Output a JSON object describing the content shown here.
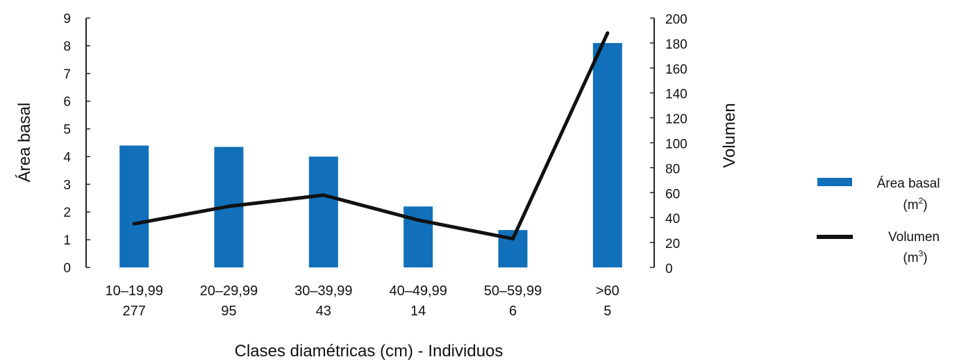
{
  "chart_data": {
    "type": "bar",
    "categories": [
      "10–19,99",
      "20–29,99",
      "30–39,99",
      "40–49,99",
      "50–59,99",
      ">60"
    ],
    "individuals": [
      "277",
      "95",
      "43",
      "14",
      "6",
      "5"
    ],
    "xlabel": "Clases diamétricas (cm) - Individuos",
    "ylabel": "Área basal",
    "y2label": "Volumen",
    "y_ticks": [
      "0",
      "1",
      "2",
      "3",
      "4",
      "5",
      "6",
      "7",
      "8",
      "9"
    ],
    "y2_ticks": [
      "0",
      "20",
      "40",
      "60",
      "80",
      "100",
      "120",
      "140",
      "160",
      "180",
      "200"
    ],
    "ylim": [
      0,
      9
    ],
    "y2lim": [
      0,
      200
    ],
    "series": [
      {
        "name": "Área basal",
        "unit": "m",
        "unit_sup": "2",
        "type": "bar",
        "axis": "left",
        "color": "#1170b9",
        "values": [
          4.4,
          4.35,
          4.0,
          2.2,
          1.35,
          8.1
        ]
      },
      {
        "name": "Volumen",
        "unit": "m",
        "unit_sup": "3",
        "type": "line",
        "axis": "right",
        "color": "#111111",
        "values": [
          35,
          49,
          58,
          38,
          23,
          188
        ]
      }
    ],
    "legend_position": "right",
    "grid": false
  }
}
